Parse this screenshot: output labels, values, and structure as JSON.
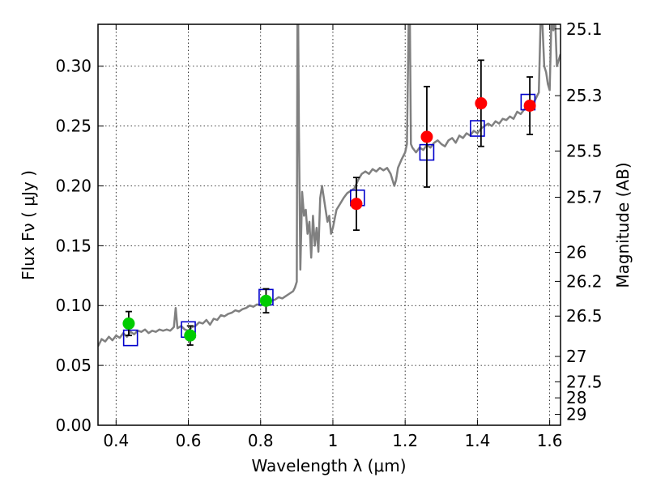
{
  "chart_data": {
    "type": "scatter",
    "xlabel": "Wavelength  λ (μm)",
    "ylabel": "Flux  Fν  ( μJy )",
    "y2label": "Magnitude (AB)",
    "xlim": [
      0.35,
      1.63
    ],
    "ylim": [
      0.0,
      0.335
    ],
    "grid": true,
    "x_ticks": [
      {
        "v": 0.4,
        "label": "0.4"
      },
      {
        "v": 0.6,
        "label": "0.6"
      },
      {
        "v": 0.8,
        "label": "0.8"
      },
      {
        "v": 1.0,
        "label": "1"
      },
      {
        "v": 1.2,
        "label": "1.2"
      },
      {
        "v": 1.4,
        "label": "1.4"
      },
      {
        "v": 1.6,
        "label": "1.6"
      }
    ],
    "y_ticks": [
      {
        "v": 0.0,
        "label": "0.00"
      },
      {
        "v": 0.05,
        "label": "0.05"
      },
      {
        "v": 0.1,
        "label": "0.10"
      },
      {
        "v": 0.15,
        "label": "0.15"
      },
      {
        "v": 0.2,
        "label": "0.20"
      },
      {
        "v": 0.25,
        "label": "0.25"
      },
      {
        "v": 0.3,
        "label": "0.30"
      }
    ],
    "mag_ticks": [
      {
        "v": 0.3311,
        "label": "25.1"
      },
      {
        "v": 0.2754,
        "label": "25.3"
      },
      {
        "v": 0.2291,
        "label": "25.5"
      },
      {
        "v": 0.1905,
        "label": "25.7"
      },
      {
        "v": 0.1445,
        "label": "26"
      },
      {
        "v": 0.1202,
        "label": "26.2"
      },
      {
        "v": 0.0912,
        "label": "26.5"
      },
      {
        "v": 0.0575,
        "label": "27"
      },
      {
        "v": 0.0363,
        "label": "27.5"
      },
      {
        "v": 0.0229,
        "label": "28"
      },
      {
        "v": 0.0091,
        "label": "29"
      }
    ],
    "series": [
      {
        "kind": "line",
        "color": "#808080",
        "points": [
          [
            0.35,
            0.066
          ],
          [
            0.36,
            0.072
          ],
          [
            0.37,
            0.07
          ],
          [
            0.38,
            0.074
          ],
          [
            0.39,
            0.071
          ],
          [
            0.4,
            0.075
          ],
          [
            0.41,
            0.073
          ],
          [
            0.42,
            0.077
          ],
          [
            0.43,
            0.074
          ],
          [
            0.44,
            0.078
          ],
          [
            0.45,
            0.076
          ],
          [
            0.46,
            0.079
          ],
          [
            0.47,
            0.078
          ],
          [
            0.48,
            0.08
          ],
          [
            0.49,
            0.077
          ],
          [
            0.5,
            0.079
          ],
          [
            0.51,
            0.078
          ],
          [
            0.52,
            0.08
          ],
          [
            0.53,
            0.079
          ],
          [
            0.54,
            0.08
          ],
          [
            0.55,
            0.079
          ],
          [
            0.56,
            0.082
          ],
          [
            0.565,
            0.098
          ],
          [
            0.57,
            0.081
          ],
          [
            0.58,
            0.083
          ],
          [
            0.59,
            0.08
          ],
          [
            0.6,
            0.079
          ],
          [
            0.61,
            0.082
          ],
          [
            0.62,
            0.083
          ],
          [
            0.63,
            0.086
          ],
          [
            0.64,
            0.085
          ],
          [
            0.65,
            0.088
          ],
          [
            0.66,
            0.084
          ],
          [
            0.67,
            0.089
          ],
          [
            0.68,
            0.088
          ],
          [
            0.69,
            0.092
          ],
          [
            0.7,
            0.091
          ],
          [
            0.71,
            0.093
          ],
          [
            0.72,
            0.094
          ],
          [
            0.73,
            0.096
          ],
          [
            0.74,
            0.095
          ],
          [
            0.75,
            0.097
          ],
          [
            0.76,
            0.098
          ],
          [
            0.77,
            0.1
          ],
          [
            0.78,
            0.099
          ],
          [
            0.79,
            0.101
          ],
          [
            0.8,
            0.1
          ],
          [
            0.81,
            0.102
          ],
          [
            0.82,
            0.103
          ],
          [
            0.83,
            0.104
          ],
          [
            0.84,
            0.105
          ],
          [
            0.85,
            0.107
          ],
          [
            0.86,
            0.106
          ],
          [
            0.87,
            0.108
          ],
          [
            0.88,
            0.11
          ],
          [
            0.89,
            0.112
          ],
          [
            0.895,
            0.115
          ],
          [
            0.9,
            0.12
          ],
          [
            0.902,
            0.34
          ],
          [
            0.904,
            0.34
          ],
          [
            0.906,
            0.25
          ],
          [
            0.91,
            0.13
          ],
          [
            0.915,
            0.195
          ],
          [
            0.92,
            0.175
          ],
          [
            0.925,
            0.18
          ],
          [
            0.93,
            0.16
          ],
          [
            0.935,
            0.17
          ],
          [
            0.94,
            0.14
          ],
          [
            0.945,
            0.175
          ],
          [
            0.95,
            0.15
          ],
          [
            0.955,
            0.165
          ],
          [
            0.96,
            0.145
          ],
          [
            0.965,
            0.19
          ],
          [
            0.97,
            0.2
          ],
          [
            0.975,
            0.19
          ],
          [
            0.98,
            0.18
          ],
          [
            0.985,
            0.17
          ],
          [
            0.99,
            0.175
          ],
          [
            0.995,
            0.16
          ],
          [
            1.0,
            0.165
          ],
          [
            1.01,
            0.18
          ],
          [
            1.02,
            0.185
          ],
          [
            1.03,
            0.19
          ],
          [
            1.04,
            0.194
          ],
          [
            1.05,
            0.196
          ],
          [
            1.06,
            0.198
          ],
          [
            1.07,
            0.205
          ],
          [
            1.08,
            0.21
          ],
          [
            1.09,
            0.212
          ],
          [
            1.1,
            0.21
          ],
          [
            1.11,
            0.214
          ],
          [
            1.12,
            0.212
          ],
          [
            1.13,
            0.215
          ],
          [
            1.14,
            0.213
          ],
          [
            1.15,
            0.215
          ],
          [
            1.16,
            0.21
          ],
          [
            1.17,
            0.2
          ],
          [
            1.175,
            0.205
          ],
          [
            1.18,
            0.215
          ],
          [
            1.19,
            0.222
          ],
          [
            1.2,
            0.228
          ],
          [
            1.205,
            0.235
          ],
          [
            1.21,
            0.34
          ],
          [
            1.213,
            0.34
          ],
          [
            1.216,
            0.235
          ],
          [
            1.22,
            0.232
          ],
          [
            1.23,
            0.228
          ],
          [
            1.24,
            0.232
          ],
          [
            1.25,
            0.23
          ],
          [
            1.26,
            0.234
          ],
          [
            1.27,
            0.232
          ],
          [
            1.28,
            0.236
          ],
          [
            1.29,
            0.238
          ],
          [
            1.3,
            0.235
          ],
          [
            1.31,
            0.233
          ],
          [
            1.32,
            0.238
          ],
          [
            1.33,
            0.24
          ],
          [
            1.34,
            0.236
          ],
          [
            1.35,
            0.242
          ],
          [
            1.36,
            0.24
          ],
          [
            1.37,
            0.244
          ],
          [
            1.38,
            0.242
          ],
          [
            1.39,
            0.246
          ],
          [
            1.4,
            0.244
          ],
          [
            1.41,
            0.248
          ],
          [
            1.42,
            0.25
          ],
          [
            1.43,
            0.252
          ],
          [
            1.44,
            0.25
          ],
          [
            1.45,
            0.254
          ],
          [
            1.46,
            0.252
          ],
          [
            1.47,
            0.256
          ],
          [
            1.48,
            0.255
          ],
          [
            1.49,
            0.258
          ],
          [
            1.5,
            0.256
          ],
          [
            1.51,
            0.262
          ],
          [
            1.52,
            0.26
          ],
          [
            1.53,
            0.264
          ],
          [
            1.54,
            0.266
          ],
          [
            1.55,
            0.268
          ],
          [
            1.56,
            0.272
          ],
          [
            1.57,
            0.278
          ],
          [
            1.575,
            0.34
          ],
          [
            1.58,
            0.335
          ],
          [
            1.585,
            0.3
          ],
          [
            1.59,
            0.295
          ],
          [
            1.595,
            0.285
          ],
          [
            1.6,
            0.28
          ],
          [
            1.605,
            0.34
          ],
          [
            1.61,
            0.33
          ],
          [
            1.615,
            0.34
          ],
          [
            1.62,
            0.3
          ],
          [
            1.63,
            0.31
          ]
        ]
      },
      {
        "kind": "open-squares",
        "color": "#0000cc",
        "points": [
          [
            0.44,
            0.073
          ],
          [
            0.6,
            0.08
          ],
          [
            0.815,
            0.107
          ],
          [
            1.068,
            0.19
          ],
          [
            1.26,
            0.228
          ],
          [
            1.4,
            0.248
          ],
          [
            1.54,
            0.27
          ]
        ]
      },
      {
        "kind": "filled-circles",
        "color": "#00cc00",
        "points": [
          {
            "x": 0.435,
            "y": 0.085,
            "err": 0.01
          },
          {
            "x": 0.605,
            "y": 0.075,
            "err": 0.008
          },
          {
            "x": 0.815,
            "y": 0.104,
            "err": 0.01
          }
        ]
      },
      {
        "kind": "filled-circles",
        "color": "#ff0000",
        "points": [
          {
            "x": 1.065,
            "y": 0.185,
            "err": 0.022
          },
          {
            "x": 1.26,
            "y": 0.241,
            "err": 0.042
          },
          {
            "x": 1.41,
            "y": 0.269,
            "err": 0.036
          },
          {
            "x": 1.545,
            "y": 0.267,
            "err": 0.024
          }
        ]
      }
    ]
  }
}
